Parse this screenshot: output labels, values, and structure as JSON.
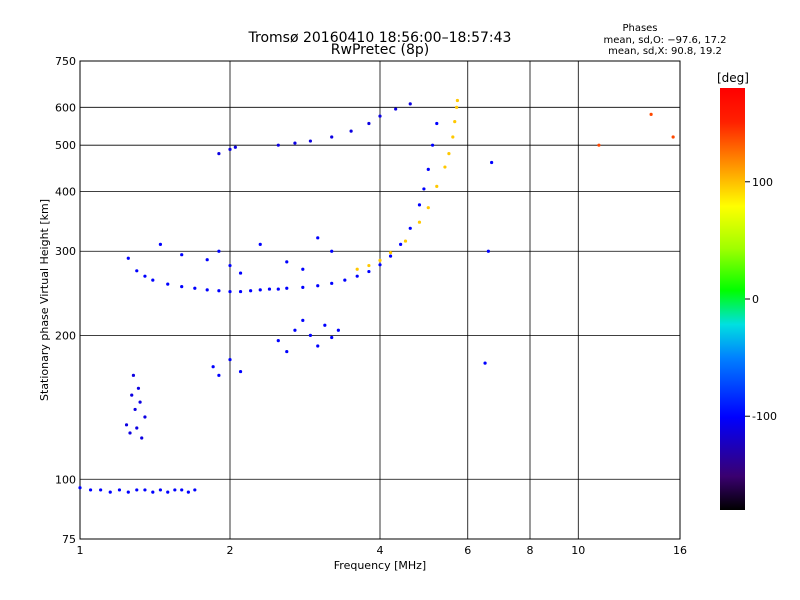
{
  "header": {
    "title": "Tromsø 20160410 18:56:00–18:57:43",
    "subtitle": "RwPretec (8p)",
    "stats_title": "Phases",
    "stats_o": "mean, sd,O: −97.6, 17.2",
    "stats_x": "mean, sd,X:  90.8, 19.2"
  },
  "chart_data": {
    "type": "scatter",
    "xlabel": "Frequency [MHz]",
    "ylabel": "Stationary phase Virtual Height [km]",
    "xscale": "log",
    "yscale": "log",
    "xlim": [
      1,
      16
    ],
    "ylim": [
      75,
      750
    ],
    "xticks": [
      1,
      2,
      4,
      6,
      8,
      10,
      16
    ],
    "yticks": [
      75,
      100,
      200,
      300,
      400,
      500,
      600,
      750
    ],
    "x_gridlines": [
      2,
      4,
      6,
      8,
      10
    ],
    "y_gridlines": [
      100,
      200,
      300,
      400,
      500,
      600
    ],
    "colorbar": {
      "label": "[deg]",
      "range": [
        -180,
        180
      ],
      "ticks": [
        100,
        0,
        -100
      ]
    },
    "series": [
      {
        "color_phase": -100,
        "x": [
          1.0,
          1.05,
          1.1,
          1.15,
          1.2,
          1.25,
          1.3,
          1.35,
          1.4,
          1.45,
          1.5,
          1.55,
          1.6,
          1.65,
          1.7
        ],
        "y": [
          96,
          95,
          95,
          94,
          95,
          94,
          95,
          95,
          94,
          95,
          94,
          95,
          95,
          94,
          95
        ]
      },
      {
        "color_phase": -110,
        "x": [
          1.24,
          1.26,
          1.27,
          1.28,
          1.29,
          1.3,
          1.31,
          1.32,
          1.33,
          1.35
        ],
        "y": [
          130,
          125,
          150,
          165,
          140,
          128,
          155,
          145,
          122,
          135
        ]
      },
      {
        "color_phase": -100,
        "x": [
          1.25,
          1.3,
          1.35,
          1.4,
          1.5,
          1.6,
          1.7,
          1.8,
          1.9,
          2.0,
          2.1,
          2.2,
          2.3,
          2.4,
          2.5,
          2.6,
          2.8,
          3.0,
          3.2,
          3.4,
          3.6,
          3.8,
          4.0,
          4.2,
          4.4,
          4.6,
          4.8,
          4.9,
          5.0,
          5.1,
          5.2
        ],
        "y": [
          290,
          273,
          266,
          261,
          256,
          253,
          251,
          249,
          248,
          247,
          247,
          248,
          249,
          250,
          250,
          251,
          252,
          254,
          257,
          261,
          266,
          272,
          281,
          293,
          310,
          335,
          375,
          405,
          445,
          500,
          555
        ]
      },
      {
        "color_phase": -100,
        "x": [
          1.45,
          1.6,
          1.8,
          1.9,
          2.0,
          2.1,
          2.3,
          2.6,
          2.8,
          3.0,
          3.2
        ],
        "y": [
          310,
          295,
          288,
          300,
          280,
          270,
          310,
          285,
          275,
          320,
          300
        ]
      },
      {
        "color_phase": -110,
        "x": [
          1.9,
          2.0,
          2.05,
          2.5,
          2.7,
          2.9,
          3.2,
          3.5,
          3.8,
          4.0,
          4.3,
          4.6
        ],
        "y": [
          480,
          490,
          495,
          500,
          505,
          510,
          520,
          535,
          555,
          575,
          595,
          610
        ]
      },
      {
        "color_phase": -100,
        "x": [
          2.5,
          2.6,
          2.7,
          2.8,
          2.9,
          3.0,
          3.1,
          3.2,
          3.3
        ],
        "y": [
          195,
          185,
          205,
          215,
          200,
          190,
          210,
          198,
          205
        ]
      },
      {
        "color_phase": -100,
        "x": [
          1.85,
          1.9,
          2.0,
          2.1
        ],
        "y": [
          172,
          165,
          178,
          168
        ]
      },
      {
        "color_phase": 100,
        "x": [
          3.6,
          3.8,
          4.0,
          4.2,
          4.5,
          4.8,
          5.0,
          5.2,
          5.4,
          5.5,
          5.6,
          5.65,
          5.7,
          5.72
        ],
        "y": [
          275,
          280,
          287,
          298,
          315,
          345,
          370,
          410,
          450,
          480,
          520,
          560,
          600,
          620
        ]
      },
      {
        "color_phase": -100,
        "x": [
          6.5,
          6.6,
          6.7
        ],
        "y": [
          175,
          300,
          460
        ]
      },
      {
        "color_phase": 150,
        "x": [
          11,
          14,
          15.5
        ],
        "y": [
          500,
          580,
          520
        ]
      }
    ]
  }
}
